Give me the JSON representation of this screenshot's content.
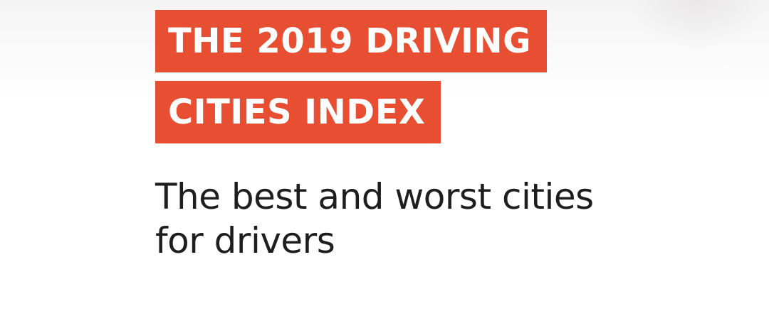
{
  "hero": {
    "title_line_1": "THE 2019 DRIVING",
    "title_line_2": "CITIES INDEX",
    "subtitle_line_1": "The best and worst cities",
    "subtitle_line_2": "for drivers"
  },
  "colors": {
    "title_background": "#e84e31",
    "title_text": "#ffffff",
    "subtitle_text": "#1e1e1e",
    "page_background": "#ffffff"
  }
}
